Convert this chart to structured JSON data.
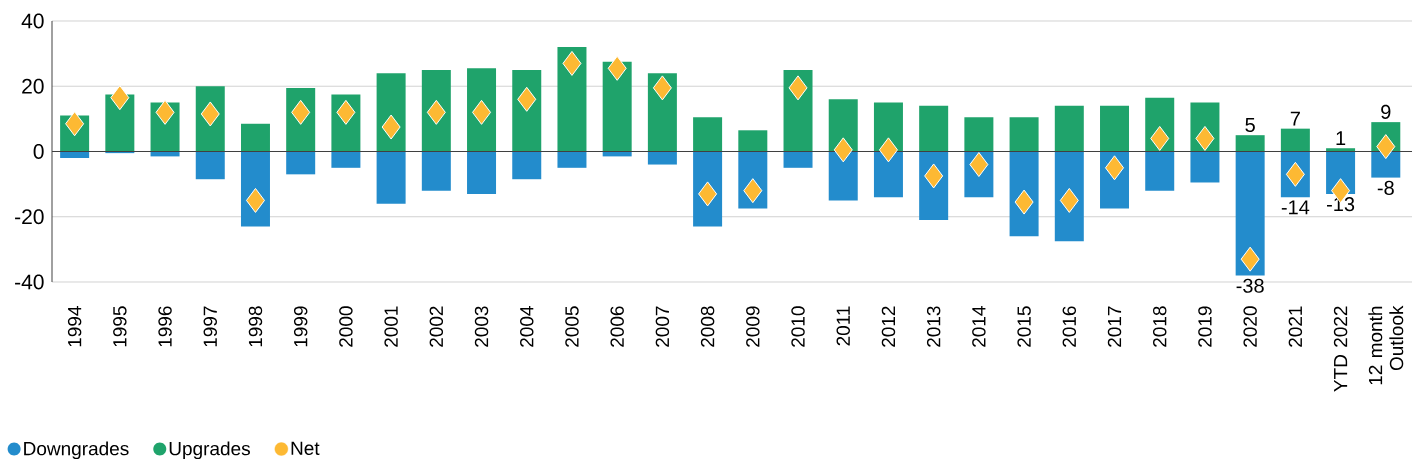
{
  "chart_data": {
    "type": "bar",
    "stacked": true,
    "categories": [
      "1994",
      "1995",
      "1996",
      "1997",
      "1998",
      "1999",
      "2000",
      "2001",
      "2002",
      "2003",
      "2004",
      "2005",
      "2006",
      "2007",
      "2008",
      "2009",
      "2010",
      "2011",
      "2012",
      "2013",
      "2014",
      "2015",
      "2016",
      "2017",
      "2018",
      "2019",
      "2020",
      "2021",
      "YTD 2022",
      "12 month Outlook"
    ],
    "series": [
      {
        "name": "Downgrades",
        "color": "#238ccc",
        "values": [
          -2,
          -0.5,
          -1.5,
          -8.5,
          -23,
          -7,
          -5,
          -16,
          -12,
          -13,
          -8.5,
          -5,
          -1.5,
          -4,
          -23,
          -17.5,
          -5,
          -15,
          -14,
          -21,
          -14,
          -26,
          -27.5,
          -17.5,
          -12,
          -9.5,
          -38,
          -14,
          -13,
          -8
        ],
        "value_labels": [
          null,
          null,
          null,
          null,
          null,
          null,
          null,
          null,
          null,
          null,
          null,
          null,
          null,
          null,
          null,
          null,
          null,
          null,
          null,
          null,
          null,
          null,
          null,
          null,
          null,
          null,
          "-38",
          "-14",
          "-13",
          "-8"
        ]
      },
      {
        "name": "Upgrades",
        "color": "#1fa36b",
        "values": [
          11,
          17.5,
          15,
          20,
          8.5,
          19.5,
          17.5,
          24,
          25,
          25.5,
          25,
          32,
          27.5,
          24,
          10.5,
          6.5,
          25,
          16,
          15,
          14,
          10.5,
          10.5,
          14,
          14,
          16.5,
          15,
          5,
          7,
          1,
          9
        ],
        "value_labels": [
          null,
          null,
          null,
          null,
          null,
          null,
          null,
          null,
          null,
          null,
          null,
          null,
          null,
          null,
          null,
          null,
          null,
          null,
          null,
          null,
          null,
          null,
          null,
          null,
          null,
          null,
          "5",
          "7",
          "1",
          "9"
        ]
      },
      {
        "name": "Net",
        "type": "scatter",
        "color": "#fdb933",
        "marker": "diamond",
        "values": [
          8.5,
          16.5,
          12,
          11.5,
          -15,
          12,
          12,
          7.5,
          12,
          12,
          16,
          27,
          25.5,
          19.5,
          -13,
          -12,
          19.5,
          0.5,
          0.5,
          -7.5,
          -4,
          -15.5,
          -15,
          -5,
          4,
          4,
          -33,
          -7,
          -12,
          1.5
        ]
      }
    ],
    "ylim": [
      -40,
      40
    ],
    "yticks": [
      -40,
      -20,
      0,
      20,
      40
    ],
    "grid": "y",
    "legend": "bottom"
  }
}
